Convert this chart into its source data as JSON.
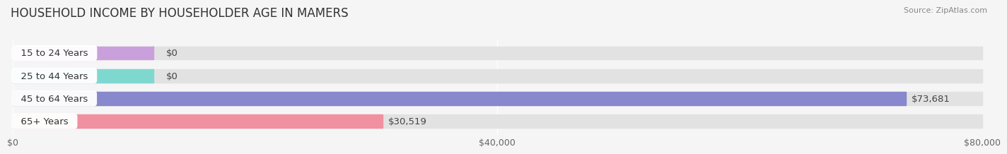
{
  "title": "HOUSEHOLD INCOME BY HOUSEHOLDER AGE IN MAMERS",
  "source": "Source: ZipAtlas.com",
  "categories": [
    "15 to 24 Years",
    "25 to 44 Years",
    "45 to 64 Years",
    "65+ Years"
  ],
  "values": [
    0,
    0,
    73681,
    30519
  ],
  "bar_colors": [
    "#c9a0dc",
    "#7fd8d0",
    "#8888cc",
    "#f090a0"
  ],
  "value_labels": [
    "$0",
    "$0",
    "$73,681",
    "$30,519"
  ],
  "xlim": [
    0,
    80000
  ],
  "xticks": [
    0,
    40000,
    80000
  ],
  "xtick_labels": [
    "$0",
    "$40,000",
    "$80,000"
  ],
  "background_color": "#f5f5f5",
  "bar_bg_color": "#e2e2e2",
  "title_fontsize": 12,
  "label_fontsize": 9.5,
  "tick_fontsize": 9
}
